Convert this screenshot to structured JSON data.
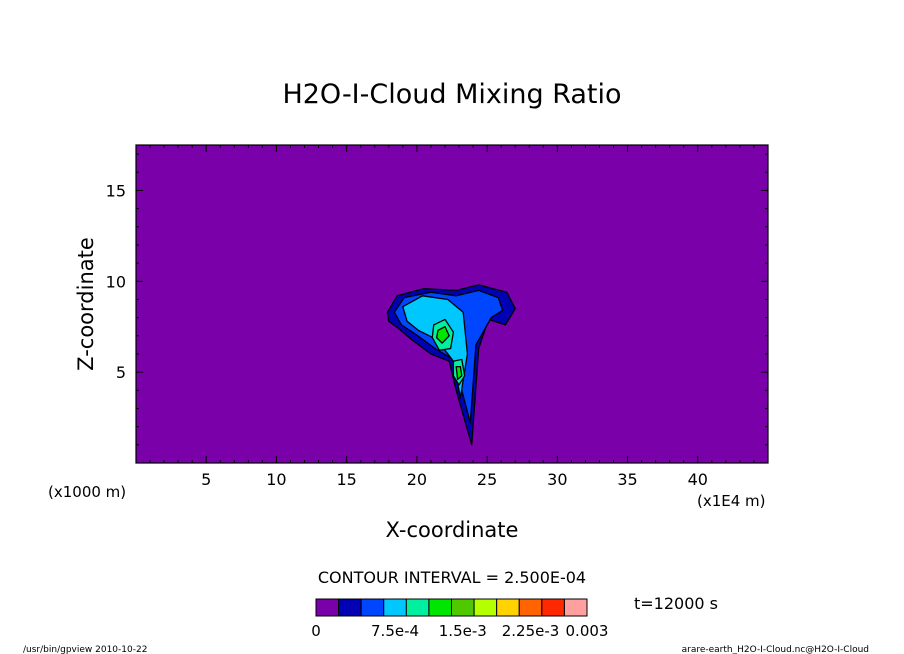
{
  "chart_data": {
    "type": "heatmap",
    "title": "H2O-I-Cloud Mixing Ratio",
    "xlabel": "X-coordinate",
    "ylabel": "Z-coordinate",
    "x_scale_note": "(x1E4 m)",
    "y_scale_note": "(x1000 m)",
    "xlim": [
      0,
      45
    ],
    "ylim": [
      0,
      17.5
    ],
    "x_ticks": [
      5,
      10,
      15,
      20,
      25,
      30,
      35,
      40
    ],
    "y_ticks": [
      5,
      10,
      15
    ],
    "contour_interval_text": "CONTOUR INTERVAL = 2.500E-04",
    "time_text": "t=12000 s",
    "footer_left": "/usr/bin/gpview  2010-10-22",
    "footer_right": "arare-earth_H2O-I-Cloud.nc@H2O-I-Cloud",
    "background_color": "#7a00aa",
    "colorbar": {
      "colors": [
        "#7a00aa",
        "#0000b4",
        "#0046ff",
        "#00c8ff",
        "#00f0a0",
        "#00e600",
        "#50c800",
        "#b4ff00",
        "#ffd200",
        "#ff6400",
        "#ff2800",
        "#ffa0a0"
      ],
      "tick_labels": [
        "0",
        "7.5e-4",
        "1.5e-3",
        "2.25e-3",
        "0.003"
      ]
    },
    "cloud_regions": [
      {
        "level": "2.5e-4",
        "color": "#0000b4",
        "points": [
          [
            17.9,
            8.3
          ],
          [
            18.6,
            9.2
          ],
          [
            20.5,
            9.6
          ],
          [
            22.8,
            9.5
          ],
          [
            24.4,
            9.8
          ],
          [
            26.4,
            9.4
          ],
          [
            27.0,
            8.5
          ],
          [
            26.3,
            7.6
          ],
          [
            25.1,
            7.9
          ],
          [
            24.4,
            6.3
          ],
          [
            23.9,
            1.0
          ],
          [
            22.8,
            4.0
          ],
          [
            22.3,
            5.6
          ],
          [
            21.0,
            6.0
          ],
          [
            19.6,
            6.8
          ],
          [
            18.7,
            7.4
          ],
          [
            18.0,
            7.8
          ]
        ]
      },
      {
        "level": "5e-4",
        "color": "#0046ff",
        "points": [
          [
            18.4,
            8.3
          ],
          [
            19.1,
            9.1
          ],
          [
            21.0,
            9.4
          ],
          [
            22.8,
            9.2
          ],
          [
            24.4,
            9.5
          ],
          [
            25.8,
            9.1
          ],
          [
            26.1,
            8.4
          ],
          [
            25.3,
            8.0
          ],
          [
            24.2,
            6.5
          ],
          [
            23.8,
            2.2
          ],
          [
            23.1,
            4.3
          ],
          [
            22.6,
            5.7
          ],
          [
            21.3,
            6.3
          ],
          [
            19.9,
            7.1
          ],
          [
            18.9,
            7.6
          ]
        ]
      },
      {
        "level": "7.5e-4",
        "color": "#00c8ff",
        "points": [
          [
            19.0,
            8.6
          ],
          [
            20.4,
            9.2
          ],
          [
            22.2,
            9.0
          ],
          [
            23.3,
            8.3
          ],
          [
            23.6,
            6.0
          ],
          [
            23.1,
            3.6
          ],
          [
            22.6,
            5.6
          ],
          [
            21.4,
            6.8
          ],
          [
            20.1,
            7.3
          ],
          [
            19.3,
            7.8
          ]
        ]
      },
      {
        "level": "1.25e-3",
        "color": "#00f0a0",
        "points": [
          [
            21.2,
            7.6
          ],
          [
            22.0,
            7.9
          ],
          [
            22.6,
            7.2
          ],
          [
            22.4,
            6.3
          ],
          [
            21.6,
            6.2
          ],
          [
            21.1,
            6.9
          ]
        ]
      },
      {
        "level": "1.25e-3",
        "color": "#00f0a0",
        "points": [
          [
            22.6,
            5.6
          ],
          [
            23.2,
            5.7
          ],
          [
            23.4,
            4.8
          ],
          [
            23.0,
            4.3
          ],
          [
            22.6,
            4.8
          ]
        ]
      },
      {
        "level": "1.5e-3",
        "color": "#00e600",
        "points": [
          [
            21.5,
            7.3
          ],
          [
            22.0,
            7.5
          ],
          [
            22.3,
            7.0
          ],
          [
            21.8,
            6.6
          ],
          [
            21.4,
            6.9
          ]
        ]
      },
      {
        "level": "1.5e-3",
        "color": "#00e600",
        "points": [
          [
            22.8,
            5.3
          ],
          [
            23.1,
            5.3
          ],
          [
            23.2,
            4.8
          ],
          [
            22.9,
            4.6
          ]
        ]
      }
    ]
  }
}
